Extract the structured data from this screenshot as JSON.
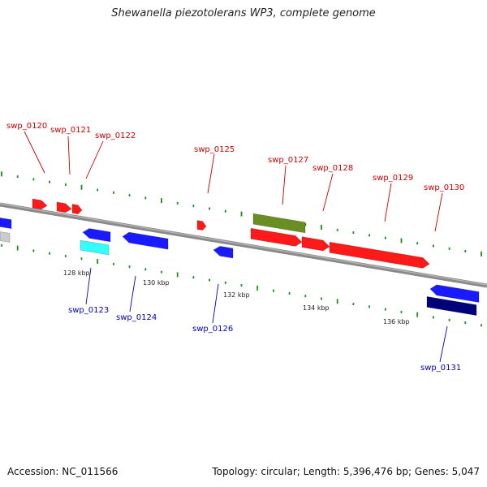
{
  "title": "Shewanella piezotolerans WP3, complete genome",
  "footer": {
    "accession": "Accession: NC_011566",
    "summary": "Topology: circular; Length: 5,396,476 bp; Genes: 5,047"
  },
  "colors": {
    "forward_label": "#cc0000",
    "reverse_label": "#0000bb",
    "tick_green": "#1e8c1e",
    "backbone": "#808080",
    "red_gene": "#ff1a1a",
    "blue_gene": "#1a1aff",
    "cyan_gene": "#33ffff",
    "olive_gene": "#6b8e23",
    "navy_gene": "#00007a",
    "gray_gene": "#cccccc"
  },
  "forward_labels": [
    "swp_0120",
    "swp_0121",
    "swp_0122",
    "swp_0125",
    "swp_0127",
    "swp_0128",
    "swp_0129",
    "swp_0130"
  ],
  "reverse_labels": [
    "swp_0123",
    "swp_0124",
    "swp_0126",
    "swp_0131"
  ],
  "kbp_ticks": [
    "128 kbp",
    "130 kbp",
    "132 kbp",
    "134 kbp",
    "136 kbp"
  ]
}
